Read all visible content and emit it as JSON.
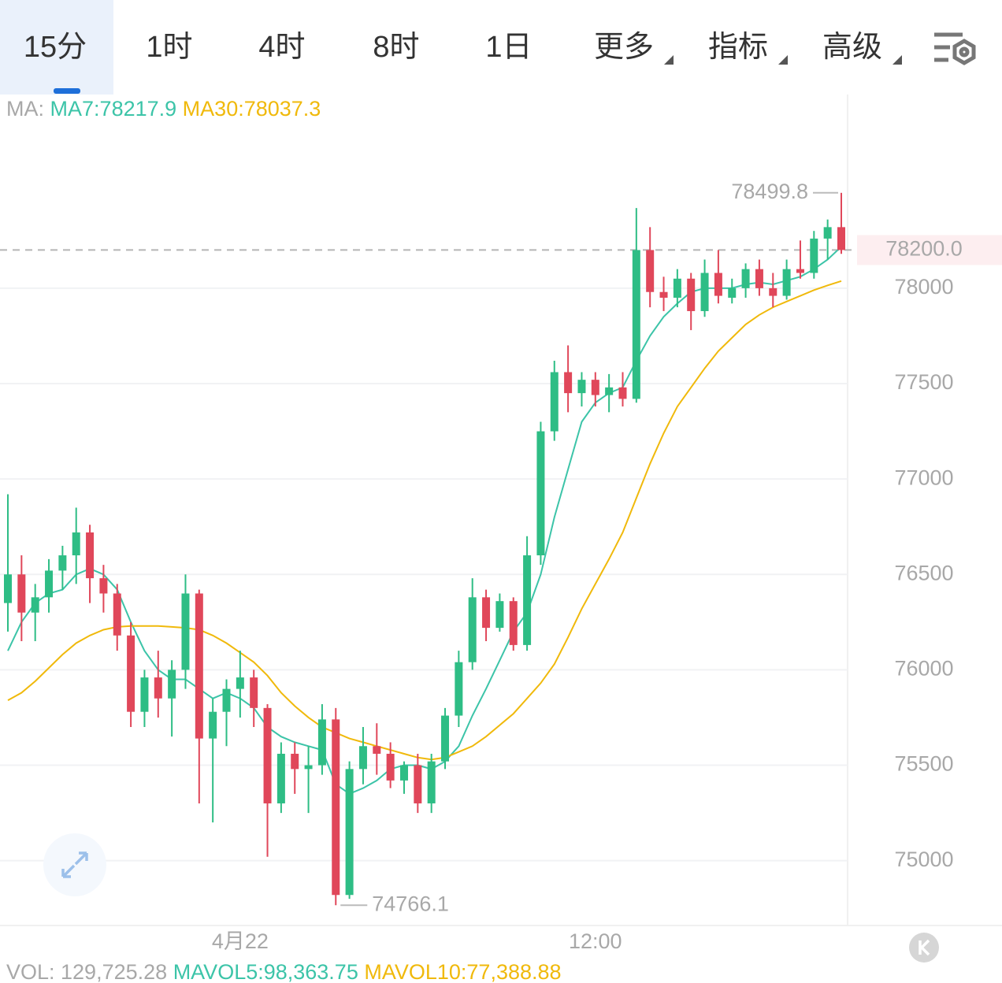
{
  "tabs": [
    "15分",
    "1时",
    "4时",
    "8时",
    "1日",
    "更多",
    "指标",
    "高级"
  ],
  "chart_data": {
    "type": "candlestick",
    "ma_prefix": "MA:",
    "up_color": "#2ebd85",
    "down_color": "#e0475a",
    "ylim": [
      74660,
      79015
    ],
    "yticks": [
      75000,
      75500,
      76000,
      76500,
      77000,
      77500,
      78000
    ],
    "grid": true,
    "last_price": {
      "value": 78200,
      "label": "78200.0"
    },
    "categories": [
      null,
      null,
      null,
      null,
      null,
      null,
      null,
      null,
      null,
      null,
      null,
      null,
      null,
      null,
      null,
      null,
      null,
      "4月22",
      null,
      null,
      null,
      null,
      null,
      null,
      null,
      null,
      null,
      null,
      null,
      null,
      null,
      null,
      null,
      null,
      null,
      null,
      null,
      null,
      null,
      null,
      null,
      null,
      null,
      "12:00",
      null,
      null,
      null,
      null,
      null,
      null,
      null,
      null,
      null,
      null,
      null,
      null,
      null,
      null,
      null,
      null,
      null,
      null
    ],
    "ohlc": [
      [
        76350,
        76920,
        76200,
        76500
      ],
      [
        76500,
        76600,
        76150,
        76300
      ],
      [
        76300,
        76450,
        76150,
        76380
      ],
      [
        76380,
        76580,
        76300,
        76520
      ],
      [
        76520,
        76650,
        76420,
        76600
      ],
      [
        76600,
        76850,
        76450,
        76720
      ],
      [
        76720,
        76760,
        76350,
        76480
      ],
      [
        76480,
        76550,
        76300,
        76400
      ],
      [
        76400,
        76450,
        76100,
        76180
      ],
      [
        76180,
        76250,
        75700,
        75780
      ],
      [
        75780,
        76000,
        75700,
        75960
      ],
      [
        75960,
        76100,
        75750,
        75850
      ],
      [
        75850,
        76050,
        75650,
        76000
      ],
      [
        76000,
        76500,
        75900,
        76400
      ],
      [
        76400,
        76420,
        75300,
        75640
      ],
      [
        75640,
        75850,
        75200,
        75780
      ],
      [
        75780,
        75950,
        75600,
        75900
      ],
      [
        75900,
        76100,
        75750,
        75960
      ],
      [
        75960,
        76000,
        75700,
        75800
      ],
      [
        75800,
        75820,
        75020,
        75300
      ],
      [
        75300,
        75620,
        75250,
        75560
      ],
      [
        75560,
        75620,
        75350,
        75480
      ],
      [
        75480,
        75600,
        75250,
        75500
      ],
      [
        75500,
        75820,
        75450,
        75740
      ],
      [
        75740,
        75800,
        74766.1,
        74820
      ],
      [
        74820,
        75520,
        74800,
        75480
      ],
      [
        75480,
        75700,
        75400,
        75600
      ],
      [
        75600,
        75720,
        75450,
        75560
      ],
      [
        75560,
        75620,
        75380,
        75420
      ],
      [
        75420,
        75520,
        75350,
        75500
      ],
      [
        75500,
        75560,
        75250,
        75300
      ],
      [
        75300,
        75560,
        75250,
        75520
      ],
      [
        75520,
        75800,
        75480,
        75760
      ],
      [
        75760,
        76100,
        75700,
        76040
      ],
      [
        76040,
        76480,
        76000,
        76380
      ],
      [
        76380,
        76420,
        76150,
        76220
      ],
      [
        76220,
        76400,
        76200,
        76360
      ],
      [
        76360,
        76380,
        76100,
        76130
      ],
      [
        76130,
        76700,
        76100,
        76600
      ],
      [
        76600,
        77300,
        76550,
        77250
      ],
      [
        77250,
        77620,
        77200,
        77560
      ],
      [
        77560,
        77700,
        77350,
        77450
      ],
      [
        77450,
        77560,
        77380,
        77520
      ],
      [
        77520,
        77560,
        77380,
        77440
      ],
      [
        77440,
        77550,
        77350,
        77480
      ],
      [
        77480,
        77560,
        77380,
        77420
      ],
      [
        77420,
        78420,
        77400,
        78200
      ],
      [
        78200,
        78320,
        77900,
        77980
      ],
      [
        77980,
        78060,
        77880,
        77950
      ],
      [
        77950,
        78100,
        77900,
        78050
      ],
      [
        78050,
        78080,
        77780,
        77880
      ],
      [
        77880,
        78150,
        77850,
        78080
      ],
      [
        78080,
        78200,
        77920,
        77960
      ],
      [
        77950,
        78050,
        77920,
        78000
      ],
      [
        78000,
        78130,
        77950,
        78100
      ],
      [
        78100,
        78150,
        77960,
        78000
      ],
      [
        78000,
        78080,
        77900,
        77960
      ],
      [
        77960,
        78150,
        77940,
        78100
      ],
      [
        78100,
        78250,
        78050,
        78080
      ],
      [
        78080,
        78300,
        78050,
        78260
      ],
      [
        78260,
        78360,
        78150,
        78320
      ],
      [
        78320,
        78499.8,
        78180,
        78200
      ]
    ],
    "series": [
      {
        "name": "MA7",
        "label": "MA7:78217.9",
        "color": "#3cc4a8",
        "values": [
          76100,
          76250,
          76350,
          76400,
          76420,
          76500,
          76530,
          76500,
          76420,
          76250,
          76100,
          76000,
          75950,
          75950,
          75900,
          75850,
          75880,
          75850,
          75800,
          75700,
          75650,
          75620,
          75600,
          75580,
          75400,
          75350,
          75380,
          75420,
          75480,
          75500,
          75500,
          75480,
          75520,
          75600,
          75760,
          75900,
          76050,
          76200,
          76300,
          76500,
          76800,
          77050,
          77300,
          77400,
          77450,
          77480,
          77620,
          77750,
          77850,
          77920,
          77980,
          78000,
          78000,
          78000,
          78020,
          78030,
          78020,
          78040,
          78060,
          78100,
          78150,
          78217.9
        ]
      },
      {
        "name": "MA30",
        "label": "MA30:78037.3",
        "color": "#f0b90b",
        "values": [
          75840,
          75880,
          75940,
          76010,
          76080,
          76140,
          76180,
          76210,
          76225,
          76230,
          76230,
          76230,
          76225,
          76220,
          76210,
          76180,
          76140,
          76090,
          76040,
          75970,
          75880,
          75810,
          75750,
          75700,
          75670,
          75640,
          75620,
          75600,
          75580,
          75560,
          75540,
          75530,
          75540,
          75570,
          75600,
          75650,
          75710,
          75770,
          75850,
          75930,
          76030,
          76170,
          76320,
          76450,
          76580,
          76720,
          76900,
          77080,
          77240,
          77380,
          77480,
          77580,
          77670,
          77740,
          77810,
          77860,
          77900,
          77930,
          77960,
          77990,
          78015,
          78037.3
        ]
      }
    ],
    "volume": {
      "vol": "VOL: 129,725.28",
      "mavol5": "MAVOL5:98,363.75",
      "mavol10": "MAVOL10:77,388.88"
    }
  }
}
